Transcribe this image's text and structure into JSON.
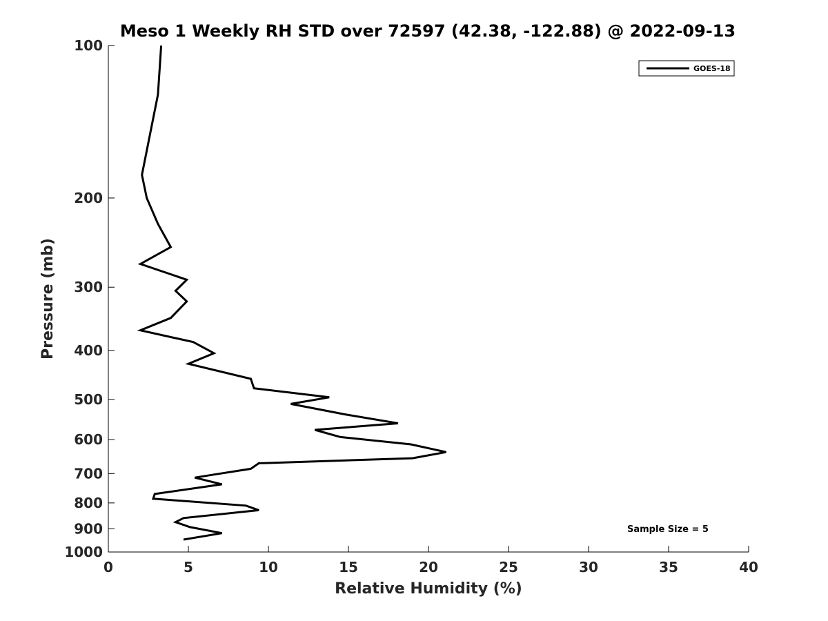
{
  "chart_data": {
    "type": "line",
    "title": "Meso 1 Weekly RH STD over 72597 (42.38, -122.88) @ 2022-09-13",
    "xlabel": "Relative Humidity (%)",
    "ylabel": "Pressure (mb)",
    "xlim": [
      0,
      40
    ],
    "ylim": [
      100,
      1000
    ],
    "y_scale": "log",
    "y_reversed": true,
    "grid": false,
    "x_ticks": [
      0,
      5,
      10,
      15,
      20,
      25,
      30,
      35,
      40
    ],
    "y_ticks": [
      100,
      200,
      300,
      400,
      500,
      600,
      700,
      800,
      900,
      1000
    ],
    "legend_position": "top-right",
    "series": [
      {
        "name": "GOES-18",
        "color": "#000000",
        "points": [
          [
            3.3,
            100
          ],
          [
            3.1,
            125
          ],
          [
            2.1,
            180
          ],
          [
            2.4,
            200
          ],
          [
            3.1,
            225
          ],
          [
            3.9,
            250
          ],
          [
            2.0,
            270
          ],
          [
            4.9,
            290
          ],
          [
            4.2,
            305
          ],
          [
            4.9,
            320
          ],
          [
            3.9,
            345
          ],
          [
            2.0,
            365
          ],
          [
            5.3,
            385
          ],
          [
            6.6,
            405
          ],
          [
            5.0,
            425
          ],
          [
            8.9,
            455
          ],
          [
            9.1,
            475
          ],
          [
            13.8,
            495
          ],
          [
            11.4,
            510
          ],
          [
            14.8,
            535
          ],
          [
            18.1,
            557
          ],
          [
            12.9,
            574
          ],
          [
            14.5,
            593
          ],
          [
            18.9,
            613
          ],
          [
            21.1,
            635
          ],
          [
            19.0,
            653
          ],
          [
            9.4,
            668
          ],
          [
            8.9,
            685
          ],
          [
            7.0,
            700
          ],
          [
            5.4,
            713
          ],
          [
            7.1,
            735
          ],
          [
            2.9,
            768
          ],
          [
            2.8,
            785
          ],
          [
            8.6,
            810
          ],
          [
            9.4,
            827
          ],
          [
            4.7,
            857
          ],
          [
            4.2,
            873
          ],
          [
            5.1,
            893
          ],
          [
            7.1,
            918
          ],
          [
            4.7,
            945
          ]
        ]
      }
    ],
    "annotations": [
      "Sample Size = 5"
    ]
  }
}
